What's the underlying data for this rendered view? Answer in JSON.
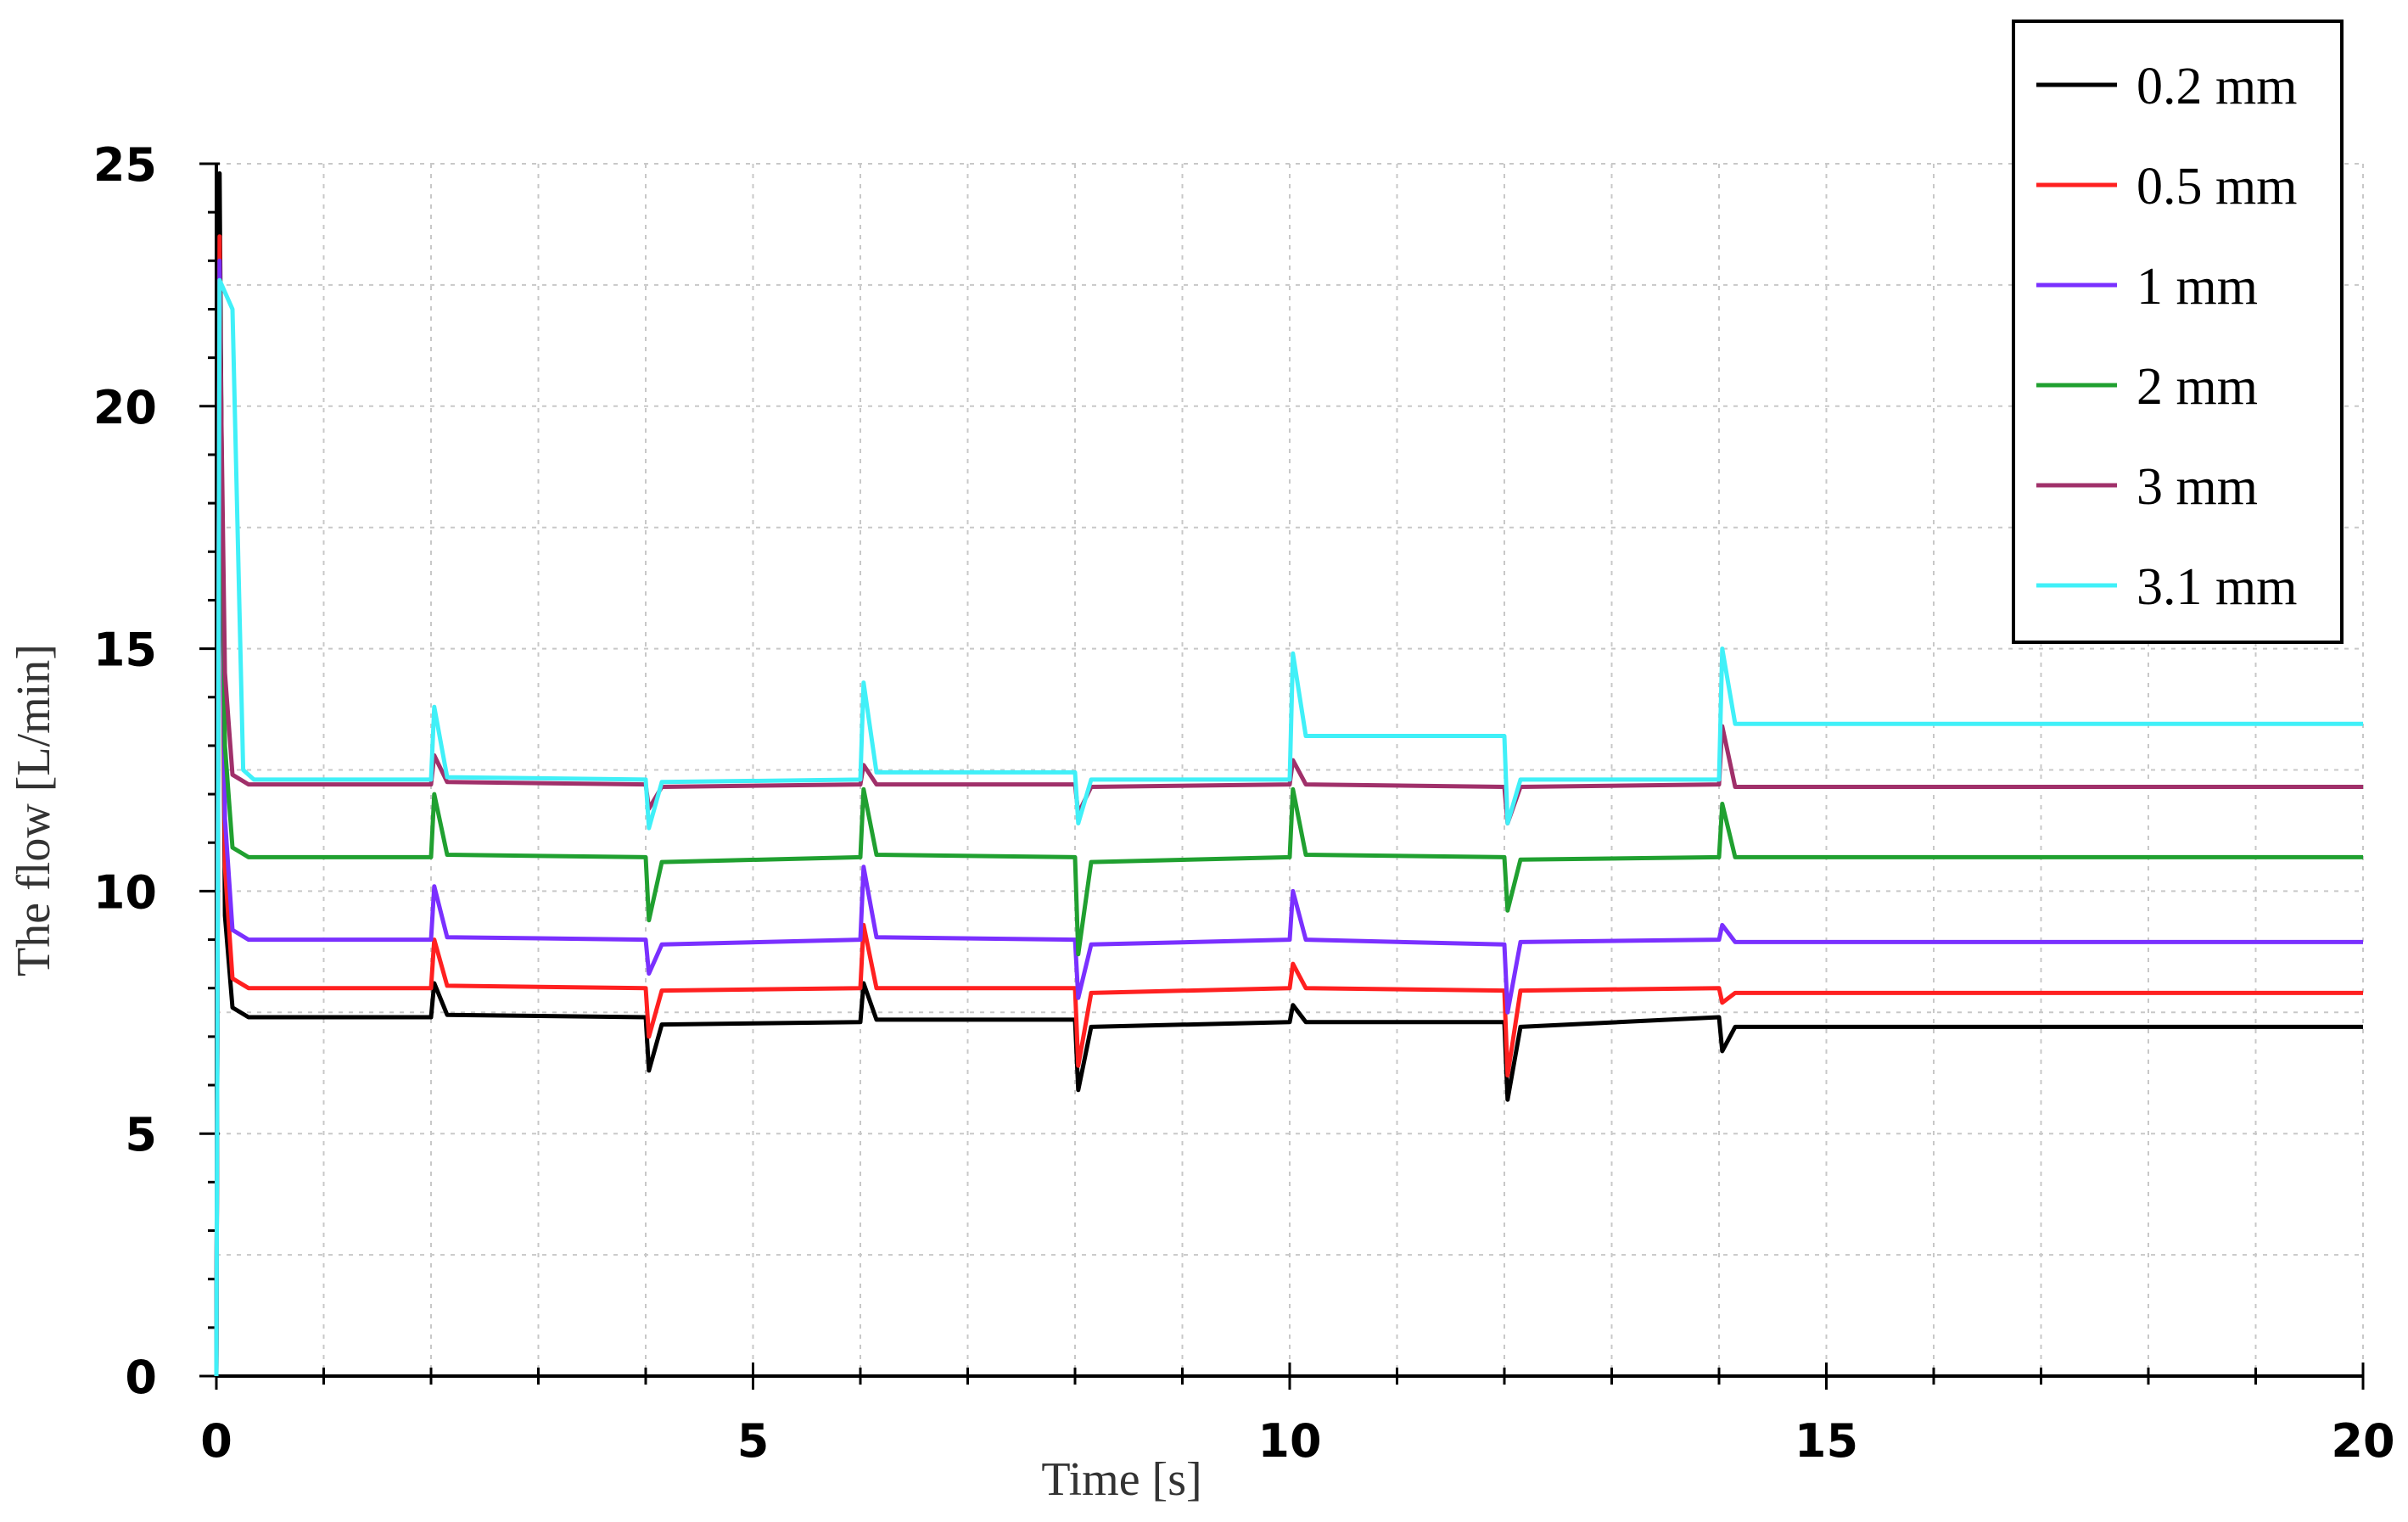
{
  "chart_data": {
    "type": "line",
    "title": "",
    "xlabel": "Time  [s]",
    "ylabel": "The flow  [L/min]",
    "xlim": [
      0,
      20
    ],
    "ylim": [
      0,
      25
    ],
    "x_ticks": [
      "0",
      "5",
      "10",
      "15",
      "20"
    ],
    "y_ticks": [
      "0",
      "5",
      "10",
      "15",
      "20",
      "25"
    ],
    "grid": true,
    "legend_position": "top-right",
    "series": [
      {
        "name": "0.2 mm",
        "color": "#000000",
        "points": [
          [
            0,
            0
          ],
          [
            0.03,
            24.8
          ],
          [
            0.08,
            9.5
          ],
          [
            0.15,
            7.6
          ],
          [
            0.3,
            7.4
          ],
          [
            2.0,
            7.4
          ],
          [
            2.03,
            8.1
          ],
          [
            2.15,
            7.45
          ],
          [
            4.0,
            7.4
          ],
          [
            4.03,
            6.3
          ],
          [
            4.15,
            7.25
          ],
          [
            6.0,
            7.3
          ],
          [
            6.03,
            8.1
          ],
          [
            6.15,
            7.35
          ],
          [
            8.0,
            7.35
          ],
          [
            8.03,
            5.9
          ],
          [
            8.15,
            7.2
          ],
          [
            10.0,
            7.3
          ],
          [
            10.03,
            7.65
          ],
          [
            10.15,
            7.3
          ],
          [
            12.0,
            7.3
          ],
          [
            12.03,
            5.7
          ],
          [
            12.15,
            7.2
          ],
          [
            14.0,
            7.4
          ],
          [
            14.03,
            6.7
          ],
          [
            14.15,
            7.2
          ],
          [
            20,
            7.2
          ]
        ]
      },
      {
        "name": "0.5 mm",
        "color": "#ff2020",
        "points": [
          [
            0,
            0
          ],
          [
            0.03,
            23.5
          ],
          [
            0.08,
            10.5
          ],
          [
            0.15,
            8.2
          ],
          [
            0.3,
            8.0
          ],
          [
            2.0,
            8.0
          ],
          [
            2.03,
            9.0
          ],
          [
            2.15,
            8.05
          ],
          [
            4.0,
            8.0
          ],
          [
            4.03,
            7.0
          ],
          [
            4.15,
            7.95
          ],
          [
            6.0,
            8.0
          ],
          [
            6.03,
            9.3
          ],
          [
            6.15,
            8.0
          ],
          [
            8.0,
            8.0
          ],
          [
            8.03,
            6.4
          ],
          [
            8.15,
            7.9
          ],
          [
            10.0,
            8.0
          ],
          [
            10.03,
            8.5
          ],
          [
            10.15,
            8.0
          ],
          [
            12.0,
            7.95
          ],
          [
            12.03,
            6.2
          ],
          [
            12.15,
            7.95
          ],
          [
            14.0,
            8.0
          ],
          [
            14.03,
            7.7
          ],
          [
            14.15,
            7.9
          ],
          [
            20,
            7.9
          ]
        ]
      },
      {
        "name": "1 mm",
        "color": "#7a30ff",
        "points": [
          [
            0,
            0
          ],
          [
            0.03,
            23.0
          ],
          [
            0.08,
            11.5
          ],
          [
            0.15,
            9.2
          ],
          [
            0.3,
            9.0
          ],
          [
            2.0,
            9.0
          ],
          [
            2.03,
            10.1
          ],
          [
            2.15,
            9.05
          ],
          [
            4.0,
            9.0
          ],
          [
            4.03,
            8.3
          ],
          [
            4.15,
            8.9
          ],
          [
            6.0,
            9.0
          ],
          [
            6.03,
            10.5
          ],
          [
            6.15,
            9.05
          ],
          [
            8.0,
            9.0
          ],
          [
            8.03,
            7.8
          ],
          [
            8.15,
            8.9
          ],
          [
            10.0,
            9.0
          ],
          [
            10.03,
            10.0
          ],
          [
            10.15,
            9.0
          ],
          [
            12.0,
            8.9
          ],
          [
            12.03,
            7.5
          ],
          [
            12.15,
            8.95
          ],
          [
            14.0,
            9.0
          ],
          [
            14.03,
            9.3
          ],
          [
            14.15,
            8.95
          ],
          [
            20,
            8.95
          ]
        ]
      },
      {
        "name": "2 mm",
        "color": "#20a030",
        "points": [
          [
            0,
            0
          ],
          [
            0.03,
            22.5
          ],
          [
            0.08,
            13.0
          ],
          [
            0.15,
            10.9
          ],
          [
            0.3,
            10.7
          ],
          [
            2.0,
            10.7
          ],
          [
            2.03,
            12.0
          ],
          [
            2.15,
            10.75
          ],
          [
            4.0,
            10.7
          ],
          [
            4.03,
            9.4
          ],
          [
            4.15,
            10.6
          ],
          [
            6.0,
            10.7
          ],
          [
            6.03,
            12.1
          ],
          [
            6.15,
            10.75
          ],
          [
            8.0,
            10.7
          ],
          [
            8.03,
            8.7
          ],
          [
            8.15,
            10.6
          ],
          [
            10.0,
            10.7
          ],
          [
            10.03,
            12.1
          ],
          [
            10.15,
            10.75
          ],
          [
            12.0,
            10.7
          ],
          [
            12.03,
            9.6
          ],
          [
            12.15,
            10.65
          ],
          [
            14.0,
            10.7
          ],
          [
            14.03,
            11.8
          ],
          [
            14.15,
            10.7
          ],
          [
            20,
            10.7
          ]
        ]
      },
      {
        "name": "3 mm",
        "color": "#a0306a",
        "points": [
          [
            0,
            0
          ],
          [
            0.03,
            22.4
          ],
          [
            0.08,
            14.5
          ],
          [
            0.15,
            12.4
          ],
          [
            0.3,
            12.2
          ],
          [
            2.0,
            12.2
          ],
          [
            2.03,
            12.8
          ],
          [
            2.15,
            12.25
          ],
          [
            4.0,
            12.2
          ],
          [
            4.03,
            11.7
          ],
          [
            4.15,
            12.15
          ],
          [
            6.0,
            12.2
          ],
          [
            6.03,
            12.6
          ],
          [
            6.15,
            12.2
          ],
          [
            8.0,
            12.2
          ],
          [
            8.03,
            11.6
          ],
          [
            8.15,
            12.15
          ],
          [
            10.0,
            12.2
          ],
          [
            10.03,
            12.7
          ],
          [
            10.15,
            12.2
          ],
          [
            12.0,
            12.15
          ],
          [
            12.03,
            11.4
          ],
          [
            12.15,
            12.15
          ],
          [
            14.0,
            12.2
          ],
          [
            14.03,
            13.4
          ],
          [
            14.15,
            12.15
          ],
          [
            20,
            12.15
          ]
        ]
      },
      {
        "name": "3.1 mm",
        "color": "#40f0f8",
        "points": [
          [
            0,
            0
          ],
          [
            0.03,
            22.6
          ],
          [
            0.15,
            22.0
          ],
          [
            0.25,
            12.5
          ],
          [
            0.35,
            12.3
          ],
          [
            2.0,
            12.3
          ],
          [
            2.03,
            13.8
          ],
          [
            2.15,
            12.35
          ],
          [
            4.0,
            12.3
          ],
          [
            4.03,
            11.3
          ],
          [
            4.15,
            12.25
          ],
          [
            6.0,
            12.3
          ],
          [
            6.03,
            14.3
          ],
          [
            6.15,
            12.45
          ],
          [
            8.0,
            12.45
          ],
          [
            8.03,
            11.4
          ],
          [
            8.15,
            12.3
          ],
          [
            10.0,
            12.3
          ],
          [
            10.03,
            14.9
          ],
          [
            10.15,
            13.2
          ],
          [
            12.0,
            13.2
          ],
          [
            12.03,
            11.4
          ],
          [
            12.15,
            12.3
          ],
          [
            14.0,
            12.3
          ],
          [
            14.03,
            15.0
          ],
          [
            14.15,
            13.45
          ],
          [
            20,
            13.45
          ]
        ]
      }
    ]
  }
}
